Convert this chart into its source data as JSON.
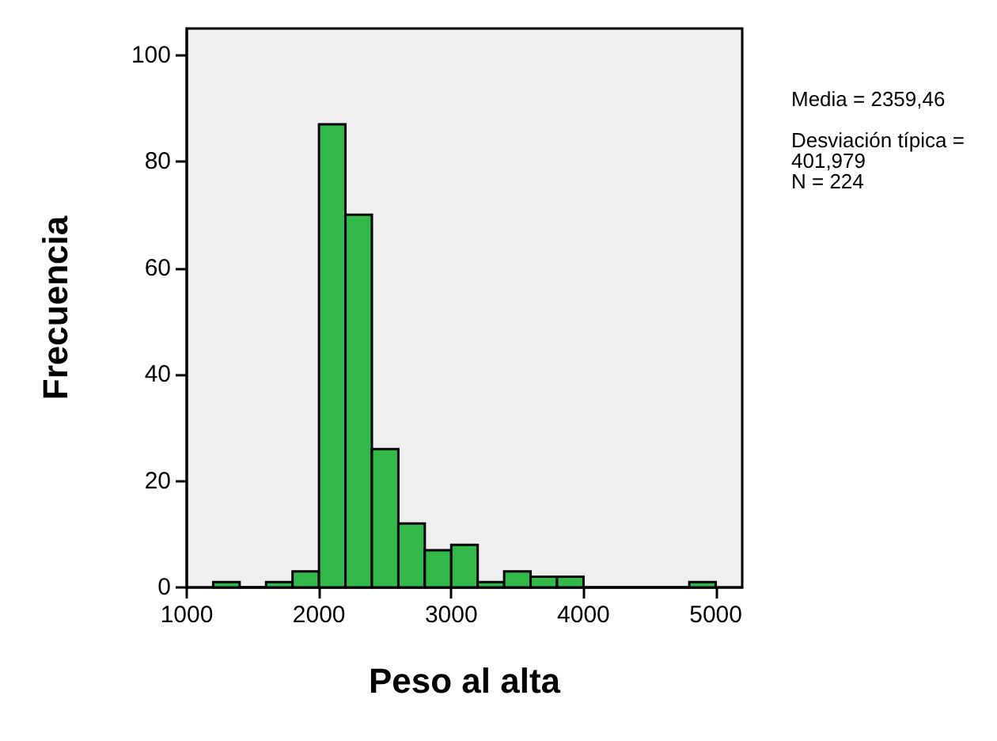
{
  "chart_data": {
    "type": "histogram",
    "xlabel": "Peso al alta",
    "ylabel": "Frecuencia",
    "bins": [
      1200,
      1400,
      1600,
      1800,
      2000,
      2200,
      2400,
      2600,
      2800,
      3000,
      3200,
      3400,
      3600,
      3800,
      4000,
      4200,
      4400,
      4600,
      4800,
      5000
    ],
    "values": [
      1,
      0,
      1,
      3,
      87,
      70,
      26,
      12,
      7,
      8,
      1,
      3,
      2,
      2,
      0,
      0,
      0,
      0,
      1
    ],
    "color": "#33b84a",
    "xlim": [
      1000,
      5200
    ],
    "xticks": [
      1000,
      2000,
      3000,
      4000,
      5000
    ],
    "ylim": [
      0,
      105
    ],
    "yticks": [
      0,
      20,
      40,
      60,
      80,
      100
    ],
    "grid": false,
    "annotations": [
      "Media = 2359,46",
      "Desviación típica = 401,979",
      "N = 224"
    ]
  }
}
